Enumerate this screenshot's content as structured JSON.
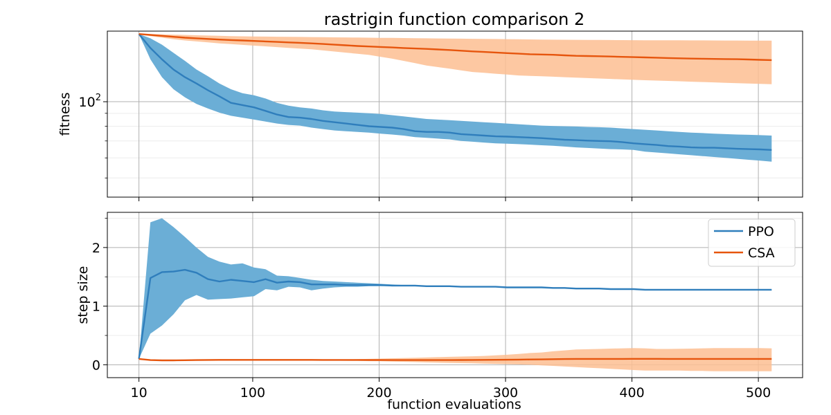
{
  "chart_data": {
    "title": "rastrigin function comparison 2",
    "xlabel": "function evaluations",
    "x_ticks": [
      10,
      100,
      200,
      300,
      400,
      500
    ],
    "xlim": [
      -15,
      535
    ],
    "x": [
      10,
      19.1,
      28.2,
      37.3,
      46.4,
      55.5,
      64.6,
      73.7,
      82.8,
      91.9,
      101,
      110.1,
      119.2,
      128.3,
      137.4,
      146.5,
      155.6,
      164.7,
      173.8,
      182.9,
      192,
      201.1,
      210.2,
      219.3,
      228.4,
      237.5,
      246.6,
      255.7,
      264.8,
      273.9,
      283,
      292.1,
      301.2,
      310.3,
      319.4,
      328.5,
      337.6,
      346.7,
      355.8,
      364.9,
      374,
      383.1,
      392.2,
      401.3,
      410.4,
      419.5,
      428.6,
      437.7,
      446.8,
      455.9,
      465,
      474.1,
      483.2,
      492.3,
      501.4,
      510.5
    ],
    "colors": {
      "PPO": "#2f7ebc",
      "CSA": "#e6550d",
      "PPO_band": "#6baed6",
      "CSA_band": "#fdbe92"
    },
    "legend": {
      "entries": [
        "PPO",
        "CSA"
      ],
      "placement": "upper right of lower panel"
    },
    "grid": true,
    "panels": [
      {
        "type": "line",
        "yscale": "log",
        "ylabel": "fitness",
        "ylim": [
          42,
          190
        ],
        "y_tick_labels": [
          {
            "value": 100,
            "base": "10",
            "exp": "2"
          }
        ],
        "series": [
          {
            "name": "PPO",
            "mean": [
              185,
              163,
              147,
              134,
              125,
              118,
              111,
              105,
              99,
              97,
              95,
              92,
              89,
              87,
              86.5,
              85.5,
              84,
              83,
              82,
              81,
              80,
              79.5,
              79,
              78,
              76.5,
              76,
              76,
              75.5,
              74.5,
              74,
              73.5,
              73,
              72.8,
              72.5,
              72.2,
              71.8,
              71.3,
              70.8,
              70.5,
              70.2,
              70,
              69.8,
              69.3,
              68.5,
              68,
              67.5,
              66.8,
              66.5,
              66,
              65.8,
              65.8,
              65.5,
              65.2,
              65,
              64.8,
              64.5
            ],
            "upper": [
              185,
              178,
              168,
              156,
              145,
              134,
              126,
              118,
              112,
              108,
              106,
              103,
              99,
              96.5,
              95,
              94,
              92.5,
              91.5,
              91,
              90.5,
              90,
              89.5,
              88.5,
              87.5,
              86.5,
              85.5,
              85,
              84.5,
              84,
              83.5,
              83,
              82.5,
              82,
              81.5,
              81,
              80.5,
              80.2,
              80,
              79.8,
              79.5,
              79.3,
              79,
              78.5,
              78,
              77.5,
              77,
              76.5,
              76,
              75.5,
              75.2,
              74.8,
              74.5,
              74.2,
              74,
              73.8,
              73.5
            ],
            "lower": [
              185,
              147,
              125,
              112,
              104,
              98,
              94,
              90.5,
              88,
              86.5,
              85,
              83.5,
              82,
              81,
              80.5,
              79,
              78,
              77,
              76.5,
              76,
              75.5,
              74.8,
              74.2,
              73.5,
              72.5,
              72,
              71.5,
              71,
              70,
              69.5,
              69,
              68.5,
              68.3,
              68,
              67.7,
              67.3,
              67,
              66.5,
              66,
              65.7,
              65.3,
              65,
              64.8,
              64.5,
              63.5,
              63,
              62.5,
              62,
              61.5,
              61,
              60.5,
              60,
              59.5,
              59,
              58.5,
              58
            ]
          },
          {
            "name": "CSA",
            "mean": [
              185,
              183.5,
              182,
              180.5,
              179,
              178,
              177,
              176,
              175.2,
              174.5,
              173.8,
              173,
              172.2,
              171.5,
              170.8,
              170,
              169,
              168,
              167,
              166,
              165.2,
              164.5,
              163.8,
              163,
              162.3,
              161.6,
              160.8,
              160,
              159,
              158,
              157.2,
              156.4,
              155.6,
              154.8,
              154,
              153.6,
              153.2,
              152.5,
              151.8,
              151.5,
              151.2,
              150.8,
              150.4,
              150,
              149.6,
              149.2,
              148.8,
              148.4,
              148,
              147.8,
              147.6,
              147.4,
              147.2,
              146.8,
              146.4,
              146
            ],
            "upper": [
              185,
              185,
              184.5,
              184,
              183.5,
              183,
              182.5,
              182,
              181.6,
              181.2,
              181,
              180.8,
              180.6,
              180.4,
              180.2,
              180,
              179.8,
              179.6,
              179.4,
              179.2,
              179,
              178.8,
              178.6,
              178.4,
              178.2,
              178,
              177.8,
              177.6,
              177.4,
              177.2,
              177,
              176.8,
              176.6,
              176.4,
              176.2,
              176,
              175.8,
              175.6,
              175.5,
              175.4,
              175.3,
              175.2,
              175.1,
              175,
              174.9,
              174.8,
              174.8,
              174.7,
              174.6,
              174.6,
              174.5,
              174.4,
              174.4,
              174.3,
              174.2,
              174.2
            ],
            "lower": [
              185,
              181.5,
              179,
              176.5,
              174.5,
              173,
              171.5,
              170,
              168.8,
              167.6,
              166.5,
              165.4,
              164.3,
              163.2,
              162.1,
              161,
              159.4,
              157.8,
              156.2,
              154.6,
              153,
              150.5,
              148,
              145,
              142,
              139,
              137,
              135,
              133,
              131,
              130,
              129,
              128,
              127,
              126.5,
              126,
              125.5,
              125,
              124.5,
              124,
              123.5,
              123,
              122.5,
              122,
              121.6,
              121.2,
              120.8,
              120.4,
              120,
              119.6,
              119.2,
              118.8,
              118.4,
              118,
              117.6,
              117.2
            ]
          }
        ]
      },
      {
        "type": "line",
        "yscale": "linear",
        "ylabel": "step size",
        "ylim": [
          -0.22,
          2.6
        ],
        "y_ticks": [
          0,
          1,
          2
        ],
        "series": [
          {
            "name": "PPO",
            "mean": [
              0.1,
              1.48,
              1.58,
              1.59,
              1.62,
              1.57,
              1.46,
              1.42,
              1.45,
              1.43,
              1.41,
              1.46,
              1.4,
              1.42,
              1.41,
              1.37,
              1.37,
              1.37,
              1.36,
              1.36,
              1.36,
              1.36,
              1.35,
              1.35,
              1.35,
              1.34,
              1.34,
              1.34,
              1.33,
              1.33,
              1.33,
              1.33,
              1.32,
              1.32,
              1.32,
              1.32,
              1.31,
              1.31,
              1.3,
              1.3,
              1.3,
              1.29,
              1.29,
              1.29,
              1.28,
              1.28,
              1.28,
              1.28,
              1.28,
              1.28,
              1.28,
              1.28,
              1.28,
              1.28,
              1.28,
              1.28
            ],
            "upper": [
              0.1,
              2.43,
              2.5,
              2.35,
              2.18,
              2.0,
              1.84,
              1.76,
              1.71,
              1.73,
              1.66,
              1.63,
              1.52,
              1.51,
              1.48,
              1.45,
              1.43,
              1.42,
              1.41,
              1.4,
              1.39,
              1.38,
              1.37,
              1.36,
              1.36,
              1.35,
              1.35,
              1.35,
              1.34,
              1.34,
              1.34,
              1.33,
              1.33,
              1.32,
              1.32,
              1.32,
              1.32,
              1.31,
              1.31,
              1.3,
              1.3,
              1.3,
              1.29,
              1.29,
              1.29,
              1.29,
              1.29,
              1.28,
              1.28,
              1.28,
              1.28,
              1.28,
              1.28,
              1.28,
              1.28,
              1.28
            ],
            "lower": [
              0.1,
              0.53,
              0.67,
              0.86,
              1.1,
              1.19,
              1.11,
              1.12,
              1.13,
              1.15,
              1.17,
              1.29,
              1.27,
              1.33,
              1.32,
              1.27,
              1.3,
              1.32,
              1.33,
              1.33,
              1.34,
              1.34,
              1.34,
              1.34,
              1.34,
              1.33,
              1.33,
              1.33,
              1.33,
              1.33,
              1.32,
              1.32,
              1.32,
              1.31,
              1.31,
              1.31,
              1.31,
              1.3,
              1.3,
              1.29,
              1.29,
              1.28,
              1.28,
              1.28,
              1.28,
              1.28,
              1.27,
              1.27,
              1.27,
              1.27,
              1.27,
              1.27,
              1.27,
              1.27,
              1.27,
              1.27
            ]
          },
          {
            "name": "CSA",
            "mean": [
              0.1,
              0.08,
              0.075,
              0.075,
              0.077,
              0.08,
              0.082,
              0.083,
              0.083,
              0.083,
              0.083,
              0.083,
              0.083,
              0.083,
              0.083,
              0.083,
              0.082,
              0.082,
              0.082,
              0.082,
              0.081,
              0.081,
              0.08,
              0.08,
              0.08,
              0.08,
              0.08,
              0.08,
              0.081,
              0.082,
              0.083,
              0.085,
              0.086,
              0.088,
              0.09,
              0.092,
              0.095,
              0.097,
              0.1,
              0.1,
              0.1,
              0.1,
              0.1,
              0.101,
              0.101,
              0.101,
              0.1,
              0.1,
              0.1,
              0.1,
              0.1,
              0.1,
              0.1,
              0.1,
              0.1,
              0.1
            ],
            "upper": [
              0.1,
              0.085,
              0.08,
              0.08,
              0.082,
              0.085,
              0.088,
              0.09,
              0.09,
              0.09,
              0.09,
              0.09,
              0.09,
              0.09,
              0.09,
              0.09,
              0.09,
              0.09,
              0.092,
              0.095,
              0.1,
              0.105,
              0.11,
              0.115,
              0.12,
              0.125,
              0.13,
              0.135,
              0.14,
              0.145,
              0.15,
              0.16,
              0.17,
              0.185,
              0.2,
              0.21,
              0.23,
              0.245,
              0.26,
              0.265,
              0.27,
              0.275,
              0.28,
              0.285,
              0.28,
              0.27,
              0.27,
              0.272,
              0.275,
              0.28,
              0.285,
              0.285,
              0.285,
              0.285,
              0.285,
              0.28
            ],
            "lower": [
              0.1,
              0.075,
              0.07,
              0.07,
              0.072,
              0.075,
              0.076,
              0.076,
              0.076,
              0.076,
              0.076,
              0.076,
              0.075,
              0.075,
              0.074,
              0.073,
              0.072,
              0.07,
              0.068,
              0.065,
              0.062,
              0.06,
              0.055,
              0.05,
              0.045,
              0.04,
              0.035,
              0.03,
              0.028,
              0.025,
              0.02,
              0.015,
              0.01,
              0.005,
              0.0,
              -0.01,
              -0.02,
              -0.03,
              -0.04,
              -0.05,
              -0.06,
              -0.07,
              -0.08,
              -0.09,
              -0.1,
              -0.1,
              -0.1,
              -0.1,
              -0.105,
              -0.105,
              -0.11,
              -0.11,
              -0.11,
              -0.11,
              -0.11,
              -0.11
            ]
          }
        ]
      }
    ]
  }
}
